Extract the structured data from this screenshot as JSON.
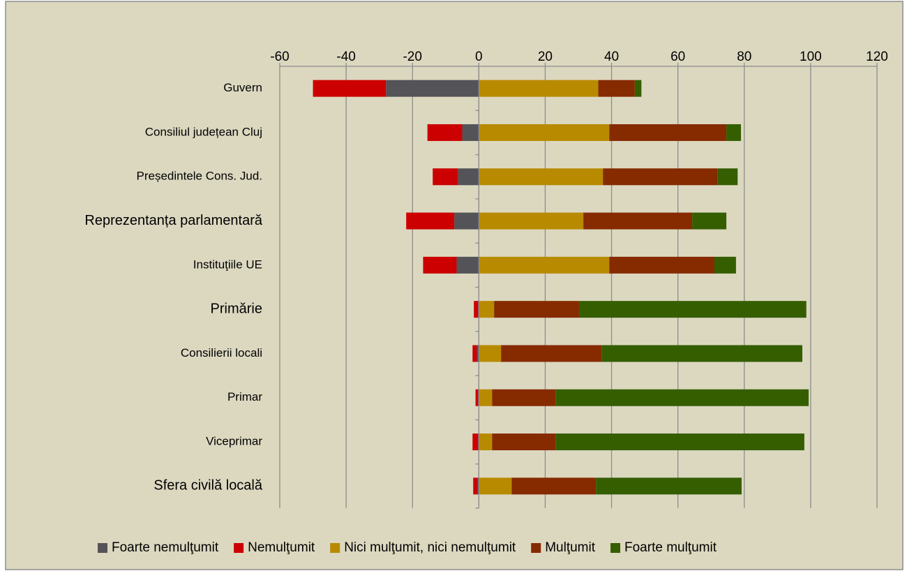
{
  "chart_data": {
    "type": "diverging_bar",
    "categories": [
      "Guvern",
      "Consiliul județean Cluj",
      "Președintele Cons. Jud.",
      "Reprezentanța parlamentară",
      "Instituţiile UE",
      "Primărie",
      "Consilierii locali",
      "Primar",
      "Viceprimar",
      "Sfera civilă locală"
    ],
    "series": [
      {
        "name": "Foarte nemulţumit",
        "color": "#545358",
        "values": [
          -28,
          -5,
          -6.3,
          -7.4,
          -6.7,
          -0.2,
          -0.6,
          -0.2,
          -0.2,
          -0.4
        ]
      },
      {
        "name": "Nemulţumit",
        "color": "#cc0000",
        "values": [
          -22,
          -10.5,
          -7.6,
          -14.5,
          -10.1,
          -1.3,
          -1.3,
          -0.8,
          -1.7,
          -1.3
        ]
      },
      {
        "name": "Nici mulţumit, nici nemulţumit",
        "color": "#b88a00",
        "values": [
          36,
          39.3,
          37.4,
          31.5,
          39.3,
          4.6,
          6.7,
          4,
          4,
          9.9
        ]
      },
      {
        "name": "Mulţumit",
        "color": "#862a00",
        "values": [
          11,
          35.3,
          34.5,
          32.8,
          31.7,
          25.6,
          30.3,
          19.1,
          19.1,
          25.4
        ]
      },
      {
        "name": "Foarte mulţumit",
        "color": "#355e00",
        "values": [
          2,
          4.4,
          6.1,
          10.3,
          6.5,
          68.5,
          60.5,
          76.3,
          75,
          43.9
        ]
      }
    ],
    "xlim": [
      -60,
      120
    ],
    "xticks": [
      -60,
      -40,
      -20,
      0,
      20,
      40,
      60,
      80,
      100,
      120
    ],
    "grid": true,
    "legend": "bottom"
  }
}
